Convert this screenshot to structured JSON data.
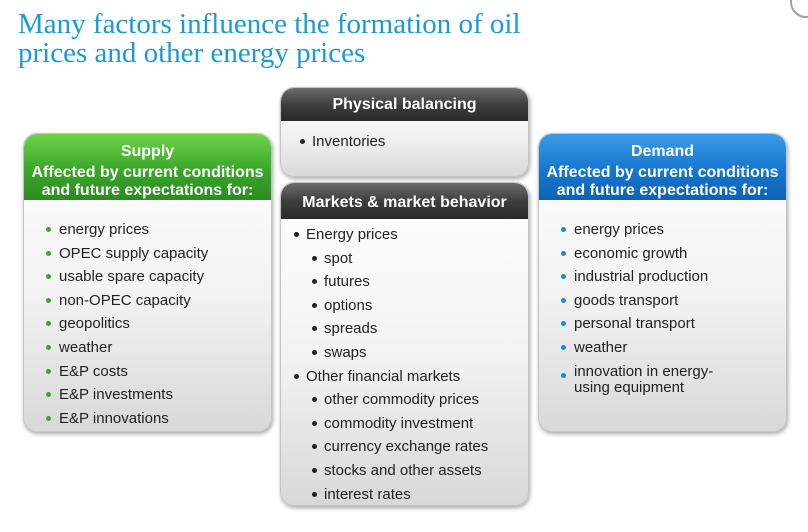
{
  "title_line1": "Many factors influence the formation of oil",
  "title_line2": "prices and other energy prices",
  "supply": {
    "heading": "Supply",
    "subheading_line1": "Affected by current conditions",
    "subheading_line2": "and future expectations for:",
    "items": [
      "energy prices",
      "OPEC supply capacity",
      "usable spare capacity",
      "non-OPEC capacity",
      "geopolitics",
      "weather",
      "E&P costs",
      "E&P investments",
      "E&P innovations"
    ]
  },
  "physical": {
    "heading": "Physical balancing",
    "items": [
      "Inventories"
    ]
  },
  "markets": {
    "heading": "Markets & market behavior",
    "group1": "Energy prices",
    "group1_items": [
      "spot",
      "futures",
      "options",
      "spreads",
      "swaps"
    ],
    "group2": "Other financial markets",
    "group2_items": [
      "other commodity prices",
      "commodity investment",
      "currency exchange rates",
      "stocks and other assets",
      "interest rates"
    ]
  },
  "demand": {
    "heading": "Demand",
    "subheading_line1": "Affected by current conditions",
    "subheading_line2": "and future expectations for:",
    "items": [
      "energy prices",
      "economic growth",
      "industrial production",
      "goods transport",
      "personal transport",
      "weather"
    ],
    "last_item_line1": "innovation in energy-",
    "last_item_line2": "using equipment"
  },
  "colors": {
    "title": "#1a9ad6",
    "supply_header": "#3aa62a",
    "demand_header": "#1676cf",
    "center_header": "#3e3e3e"
  }
}
